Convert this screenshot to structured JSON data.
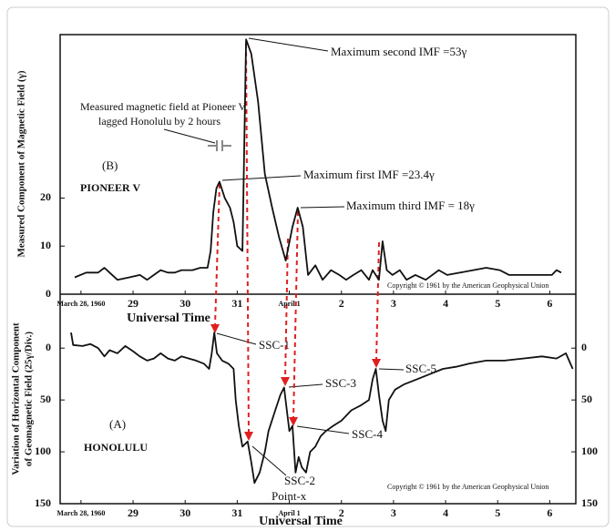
{
  "chart_data": [
    {
      "type": "line",
      "panel_label": "(B)",
      "station": "PIONEER V",
      "ylabel": "Measured  Component of Magnetic Field (γ)",
      "xlabel": "Universal Time",
      "annotations": [
        "Maximum second IMF =53γ",
        "Maximum first IMF =23.4γ",
        "Maximum third IMF = 18γ"
      ],
      "lag_note": [
        "Measured magnetic field at Pioneer V",
        "lagged Honolulu by 2 hours"
      ],
      "copyright": "Copyright © 1961 by the American Geophysical Union",
      "color": "#111111",
      "xlim": [
        27.6,
        37.5
      ],
      "ylim": [
        0,
        54
      ],
      "xticks": [
        {
          "value": 28,
          "label": "March 28, 1960"
        },
        29,
        30,
        31,
        {
          "value": 32,
          "label": "April 1"
        },
        {
          "value": 33,
          "label": "2"
        },
        {
          "value": 34,
          "label": "3"
        },
        {
          "value": 35,
          "label": "4"
        },
        {
          "value": 36,
          "label": "5"
        },
        {
          "value": 37,
          "label": "6"
        }
      ],
      "yticks": [
        0,
        10,
        20
      ],
      "x": [
        27.88,
        28.1,
        28.33,
        28.45,
        28.55,
        28.7,
        28.93,
        29.13,
        29.27,
        29.4,
        29.53,
        29.67,
        29.8,
        29.93,
        30.14,
        30.29,
        30.43,
        30.49,
        30.54,
        30.6,
        30.66,
        30.76,
        30.86,
        30.93,
        31.0,
        31.1,
        31.17,
        31.27,
        31.4,
        31.53,
        31.67,
        31.8,
        31.93,
        32.06,
        32.16,
        32.26,
        32.36,
        32.5,
        32.64,
        32.8,
        32.96,
        33.09,
        33.23,
        33.38,
        33.53,
        33.6,
        33.72,
        33.79,
        33.87,
        33.98,
        34.12,
        34.25,
        34.42,
        34.62,
        34.87,
        35.03,
        35.28,
        35.53,
        35.78,
        36.04,
        36.22,
        36.49,
        36.85,
        37.04,
        37.13,
        37.22
      ],
      "values": [
        3.5,
        4.5,
        4.5,
        5.5,
        4.5,
        3,
        3.5,
        4,
        3,
        4,
        5,
        4.5,
        4.5,
        5,
        5,
        5.5,
        5.5,
        9,
        17,
        22,
        23.4,
        20,
        18,
        15,
        10,
        9,
        53,
        50,
        40,
        25,
        18,
        12,
        7,
        14,
        18,
        14,
        4,
        6,
        3,
        5,
        4,
        3,
        4,
        5,
        3,
        5,
        3,
        11,
        5,
        4,
        5,
        3,
        4,
        3,
        5,
        4,
        4.5,
        5,
        5.5,
        5,
        4,
        4,
        4,
        4,
        5,
        4.5
      ]
    },
    {
      "type": "line",
      "panel_label": "(A)",
      "station": "HONOLULU",
      "ylabel": [
        "Variation of Horizontal Component",
        "of Geomagnetic Field (25γ/Div.)"
      ],
      "xlabel": "Universal Time",
      "annotations": [
        "SSC-1",
        "SSC-2",
        "SSC-3",
        "SSC-4",
        "SSC-5"
      ],
      "point_label": "Point-x",
      "copyright": "Copyright © 1961 by the American Geophysical Union",
      "color": "#111111",
      "right_tick_labels": true,
      "xlim": [
        27.6,
        37.5
      ],
      "ylim": [
        150,
        -52
      ],
      "xticks": [
        {
          "value": 28,
          "label": "March 28, 1960"
        },
        29,
        30,
        31,
        {
          "value": 32,
          "label": "April 1"
        },
        {
          "value": 33,
          "label": "2"
        },
        {
          "value": 34,
          "label": "3"
        },
        {
          "value": 35,
          "label": "4"
        },
        {
          "value": 36,
          "label": "5"
        },
        {
          "value": 37,
          "label": "6"
        }
      ],
      "yticks": [
        0,
        50,
        100,
        150
      ],
      "x": [
        27.81,
        27.85,
        28.03,
        28.18,
        28.33,
        28.45,
        28.55,
        28.7,
        28.85,
        29.0,
        29.13,
        29.27,
        29.4,
        29.53,
        29.67,
        29.8,
        29.93,
        30.07,
        30.21,
        30.36,
        30.46,
        30.51,
        30.56,
        30.61,
        30.71,
        30.83,
        30.93,
        30.97,
        31.03,
        31.1,
        31.2,
        31.27,
        31.33,
        31.43,
        31.53,
        31.6,
        31.73,
        31.83,
        31.9,
        32.0,
        32.06,
        32.12,
        32.18,
        32.24,
        32.32,
        32.4,
        32.5,
        32.6,
        32.7,
        32.84,
        33.0,
        33.19,
        33.38,
        33.53,
        33.6,
        33.66,
        33.72,
        33.79,
        33.85,
        33.91,
        34.03,
        34.2,
        34.45,
        34.7,
        34.95,
        35.2,
        35.45,
        35.78,
        36.13,
        36.49,
        36.85,
        37.13,
        37.31,
        37.44
      ],
      "values": [
        -15,
        -3,
        -2,
        -4,
        0,
        8,
        2,
        5,
        -2,
        3,
        8,
        12,
        10,
        5,
        10,
        12,
        8,
        10,
        12,
        15,
        20,
        5,
        -15,
        5,
        12,
        15,
        20,
        50,
        75,
        95,
        90,
        110,
        130,
        120,
        100,
        80,
        60,
        45,
        38,
        80,
        75,
        120,
        105,
        115,
        120,
        100,
        95,
        85,
        80,
        75,
        70,
        60,
        55,
        50,
        30,
        20,
        45,
        70,
        80,
        50,
        40,
        35,
        30,
        25,
        20,
        18,
        15,
        12,
        12,
        10,
        8,
        10,
        5,
        20
      ]
    }
  ]
}
